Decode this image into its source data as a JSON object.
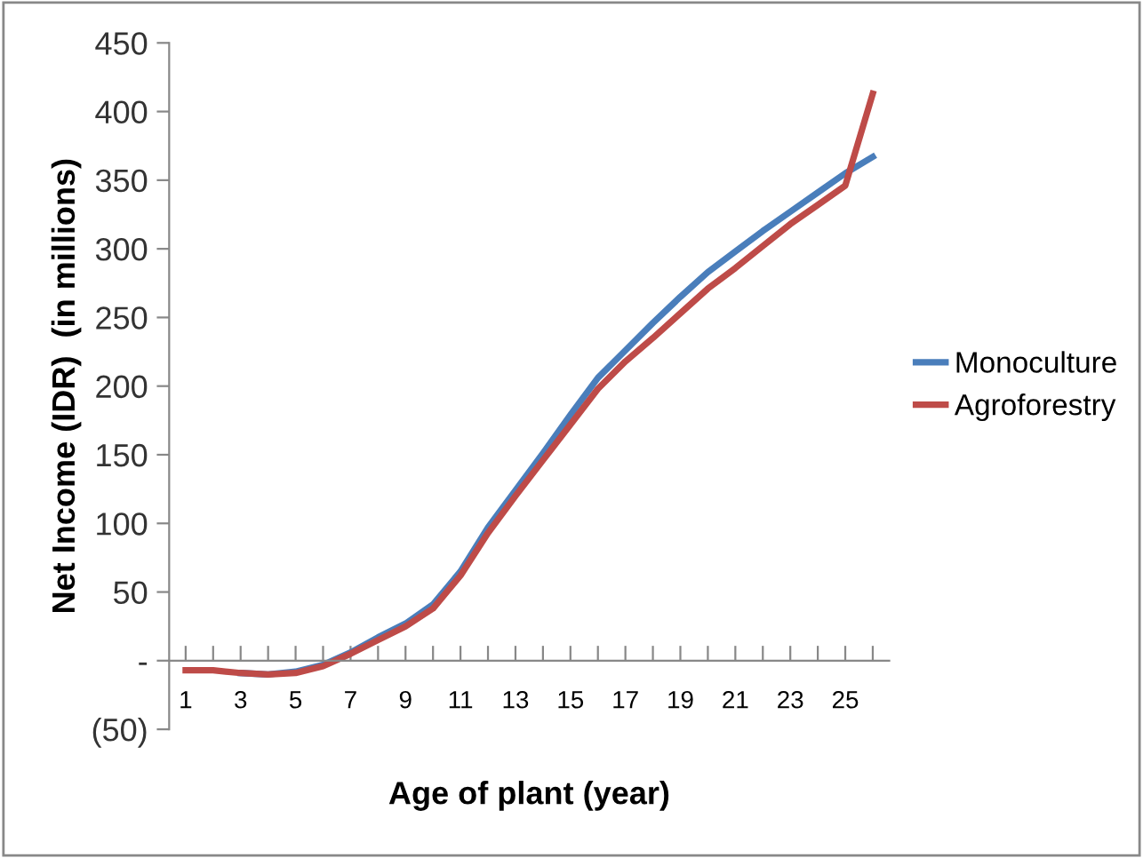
{
  "chart_data": {
    "type": "line",
    "xlabel": "Age of plant (year)",
    "ylabel": "Net Income (IDR)  (in millions)",
    "categories": [
      "1",
      null,
      "3",
      null,
      "5",
      null,
      "7",
      null,
      "9",
      null,
      "11",
      null,
      "13",
      null,
      "15",
      null,
      "17",
      null,
      "19",
      null,
      "21",
      null,
      "23",
      null,
      "25",
      null
    ],
    "series": [
      {
        "name": "Monoculture",
        "color": "#4a7ebb",
        "values": [
          null,
          null,
          -9,
          -10,
          -8,
          -3,
          6,
          17,
          27,
          41,
          65,
          97,
          124,
          151,
          179,
          206,
          226,
          246,
          265,
          283,
          298,
          313,
          327,
          341,
          355,
          367
        ]
      },
      {
        "name": "Agroforestry",
        "color": "#be4b48",
        "values": [
          -7,
          -7,
          -9,
          -10,
          -9,
          -4,
          5,
          15,
          25,
          38,
          62,
          93,
          120,
          146,
          172,
          198,
          218,
          235,
          253,
          271,
          286,
          302,
          318,
          332,
          346,
          413
        ]
      }
    ],
    "ylim": [
      -50,
      450
    ],
    "yticks": [
      {
        "value": -50,
        "label": "(50)"
      },
      {
        "value": 0,
        "label": "-"
      },
      50,
      100,
      150,
      200,
      250,
      300,
      350,
      400,
      450
    ],
    "grid": false,
    "legend": "right",
    "marker": "none",
    "line_style": "solid"
  }
}
